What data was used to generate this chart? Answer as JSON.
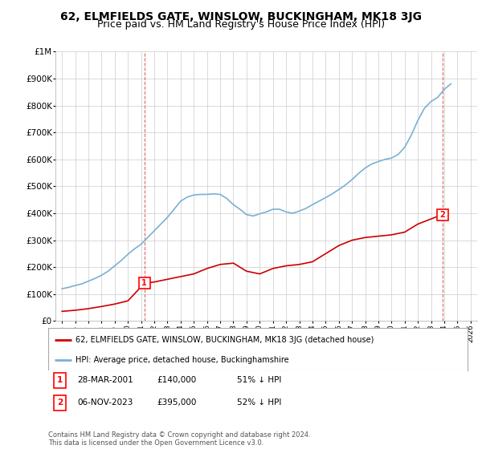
{
  "title": "62, ELMFIELDS GATE, WINSLOW, BUCKINGHAM, MK18 3JG",
  "subtitle": "Price paid vs. HM Land Registry's House Price Index (HPI)",
  "title_fontsize": 10,
  "subtitle_fontsize": 9,
  "ylabel_ticks": [
    "£0",
    "£100K",
    "£200K",
    "£300K",
    "£400K",
    "£500K",
    "£600K",
    "£700K",
    "£800K",
    "£900K",
    "£1M"
  ],
  "ylim": [
    0,
    1000000
  ],
  "xlim": [
    1994.5,
    2026.5
  ],
  "x_tick_years": [
    1995,
    1996,
    1997,
    1998,
    1999,
    2000,
    2001,
    2002,
    2003,
    2004,
    2005,
    2006,
    2007,
    2008,
    2009,
    2010,
    2011,
    2012,
    2013,
    2014,
    2015,
    2016,
    2017,
    2018,
    2019,
    2020,
    2021,
    2022,
    2023,
    2024,
    2025,
    2026
  ],
  "hpi_x": [
    1995,
    1995.5,
    1996,
    1996.5,
    1997,
    1997.5,
    1998,
    1998.5,
    1999,
    1999.5,
    2000,
    2000.5,
    2001,
    2001.5,
    2002,
    2002.5,
    2003,
    2003.5,
    2004,
    2004.5,
    2005,
    2005.5,
    2006,
    2006.5,
    2007,
    2007.5,
    2008,
    2008.5,
    2009,
    2009.5,
    2010,
    2010.5,
    2011,
    2011.5,
    2012,
    2012.5,
    2013,
    2013.5,
    2014,
    2014.5,
    2015,
    2015.5,
    2016,
    2016.5,
    2017,
    2017.5,
    2018,
    2018.5,
    2019,
    2019.5,
    2020,
    2020.5,
    2021,
    2021.5,
    2022,
    2022.5,
    2023,
    2023.5,
    2024,
    2024.5
  ],
  "hpi_y": [
    120000,
    125000,
    132000,
    138000,
    148000,
    158000,
    170000,
    185000,
    205000,
    225000,
    248000,
    268000,
    285000,
    310000,
    335000,
    360000,
    385000,
    415000,
    445000,
    460000,
    468000,
    470000,
    470000,
    472000,
    470000,
    455000,
    432000,
    415000,
    395000,
    390000,
    398000,
    405000,
    415000,
    415000,
    405000,
    400000,
    408000,
    418000,
    432000,
    445000,
    458000,
    472000,
    488000,
    505000,
    525000,
    548000,
    568000,
    583000,
    592000,
    600000,
    605000,
    618000,
    645000,
    690000,
    745000,
    790000,
    815000,
    830000,
    860000,
    880000
  ],
  "price_x": [
    1995,
    1996,
    1997,
    1998,
    1999,
    2000,
    2001.25,
    2002,
    2003,
    2004,
    2005,
    2006,
    2007,
    2008,
    2009,
    2010,
    2011,
    2012,
    2013,
    2014,
    2015,
    2016,
    2017,
    2018,
    2019,
    2020,
    2021,
    2022,
    2023.85
  ],
  "price_y": [
    36000,
    40000,
    46000,
    54000,
    63000,
    75000,
    140000,
    145000,
    155000,
    165000,
    175000,
    195000,
    210000,
    215000,
    185000,
    175000,
    195000,
    205000,
    210000,
    220000,
    250000,
    280000,
    300000,
    310000,
    315000,
    320000,
    330000,
    360000,
    395000
  ],
  "transaction1_x": 2001.25,
  "transaction1_y": 140000,
  "transaction1_label": "1",
  "transaction2_x": 2023.85,
  "transaction2_y": 395000,
  "transaction2_label": "2",
  "vline1_x": 2001.25,
  "vline2_x": 2023.85,
  "legend_line1": "62, ELMFIELDS GATE, WINSLOW, BUCKINGHAM, MK18 3JG (detached house)",
  "legend_line2": "HPI: Average price, detached house, Buckinghamshire",
  "annotation1_date": "28-MAR-2001",
  "annotation1_price": "£140,000",
  "annotation1_hpi": "51% ↓ HPI",
  "annotation2_date": "06-NOV-2023",
  "annotation2_price": "£395,000",
  "annotation2_hpi": "52% ↓ HPI",
  "footer": "Contains HM Land Registry data © Crown copyright and database right 2024.\nThis data is licensed under the Open Government Licence v3.0.",
  "line_red": "#cc0000",
  "line_blue": "#7ab0d4",
  "bg_color": "#ffffff",
  "grid_color": "#cccccc"
}
